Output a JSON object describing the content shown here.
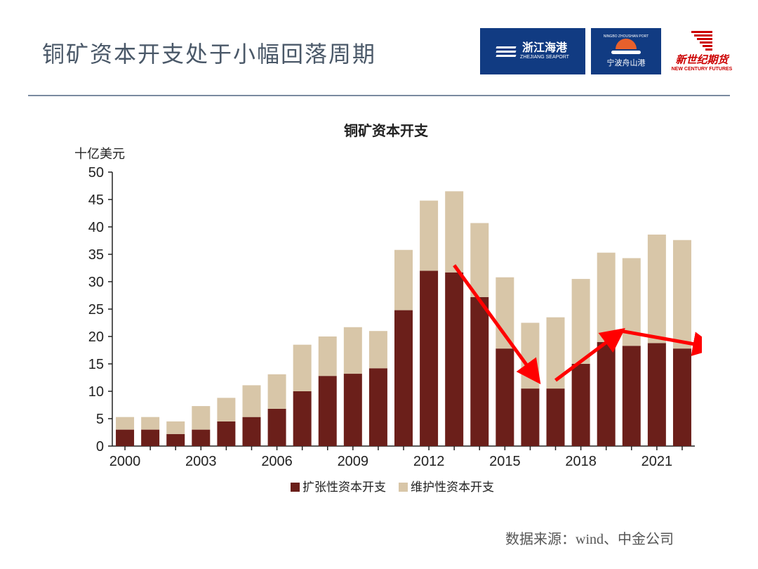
{
  "slide": {
    "title": "铜矿资本开支处于小幅回落周期",
    "source": "数据来源：wind、中金公司"
  },
  "logos": {
    "zhejiang": {
      "name_cn": "浙江海港",
      "name_en": "ZHEJIANG SEAPORT"
    },
    "ningbo": {
      "top": "NINGBO ZHOUSHAN PORT",
      "name_cn": "宁波舟山港"
    },
    "ncf": {
      "name_cn": "新世纪期货",
      "name_en": "NEW CENTURY FUTURES"
    }
  },
  "chart": {
    "type": "stacked-bar",
    "title": "铜矿资本开支",
    "y_axis_unit": "十亿美元",
    "ylim": [
      0,
      50
    ],
    "ytick_step": 5,
    "x_categories": [
      "2000",
      "2001",
      "2002",
      "2003",
      "2004",
      "2005",
      "2006",
      "2007",
      "2008",
      "2009",
      "2010",
      "2011",
      "2012",
      "2013",
      "2014",
      "2015",
      "2016",
      "2017",
      "2018",
      "2019",
      "2020",
      "2021",
      "2022"
    ],
    "x_tick_labels": [
      "2000",
      "2003",
      "2006",
      "2009",
      "2012",
      "2015",
      "2018",
      "2021"
    ],
    "x_tick_indices": [
      0,
      3,
      6,
      9,
      12,
      15,
      18,
      21
    ],
    "series": [
      {
        "name": "扩张性资本开支",
        "color": "#6b1f1a",
        "values": [
          3.0,
          3.0,
          2.2,
          3.0,
          4.5,
          5.3,
          6.8,
          10.0,
          12.8,
          13.2,
          14.2,
          24.8,
          32.0,
          31.7,
          27.2,
          17.8,
          10.5,
          10.5,
          15.0,
          19.0,
          18.3,
          18.8,
          17.8
        ]
      },
      {
        "name": "维护性资本开支",
        "color": "#d8c6a8",
        "values": [
          2.3,
          2.3,
          2.3,
          4.3,
          4.3,
          5.8,
          6.3,
          8.5,
          7.2,
          8.5,
          6.8,
          11.0,
          12.8,
          14.8,
          13.5,
          13.0,
          12.0,
          13.0,
          15.5,
          16.3,
          16.0,
          19.8,
          19.8
        ]
      }
    ],
    "bar_width": 0.72,
    "axis_color": "#222222",
    "tick_mark_color": "#222222",
    "tick_fontsize": 20,
    "title_fontsize": 20,
    "background_color": "#ffffff",
    "arrows": [
      {
        "from_idx": 13,
        "from_val": 33,
        "to_idx": 16.3,
        "to_val": 12,
        "color": "#ff0000",
        "width": 5
      },
      {
        "from_idx": 17,
        "from_val": 12,
        "to_idx": 19.6,
        "to_val": 21,
        "color": "#ff0000",
        "width": 5
      },
      {
        "from_idx": 19.6,
        "from_val": 21,
        "to_idx": 23.2,
        "to_val": 18,
        "color": "#ff0000",
        "width": 5
      }
    ]
  }
}
